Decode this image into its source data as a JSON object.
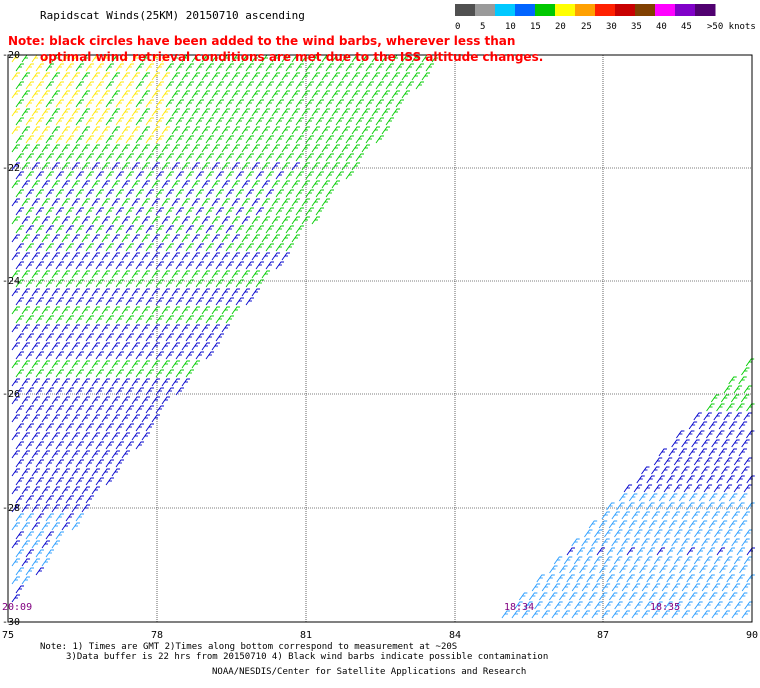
{
  "title": "Rapidscat Winds(25KM) 20150710 ascending",
  "note": {
    "line1": "Note: black circles have been added to the wind barbs, wherever less than",
    "line2": "optimal wind retrieval conditions are met due to the ISS altitude changes."
  },
  "scale": {
    "labels": [
      "0",
      "5",
      "10",
      "15",
      "20",
      "25",
      "30",
      "35",
      "40",
      "45",
      ">50 knots"
    ],
    "colors": [
      "#505050",
      "#9a9a9a",
      "#00c8ff",
      "#0064ff",
      "#00c800",
      "#ffff00",
      "#ffa000",
      "#ff2000",
      "#c80000",
      "#804000",
      "#ff00ff",
      "#8000c8",
      "#500070"
    ]
  },
  "map": {
    "lat_labels": [
      "-20",
      "-22",
      "-24",
      "-26",
      "-28",
      "-30"
    ],
    "lon_labels": [
      "75",
      "78",
      "81",
      "84",
      "87",
      "90"
    ],
    "time_labels": [
      "20:09",
      "18:34",
      "18:35"
    ],
    "barb_colors": {
      "yellow": "#ffea00",
      "green": "#00cc00",
      "blue": "#0000cc",
      "light_blue": "#2a9dff",
      "cyan": "#00d8ff"
    }
  },
  "footer": {
    "line1": "Note: 1) Times are GMT 2)Times along bottom correspond to measurement at ~20S",
    "line2": "3)Data buffer is 22 hrs from 20150710 4) Black wind barbs indicate possible contamination",
    "credit": "NOAA/NESDIS/Center for Satellite Applications and Research"
  }
}
